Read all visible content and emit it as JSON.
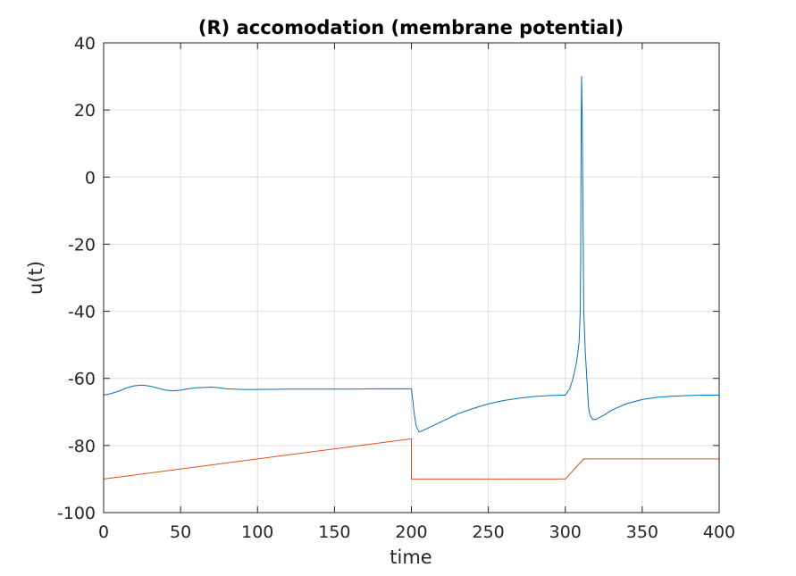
{
  "chart_data": {
    "type": "line",
    "title": "(R) accomodation (membrane potential)",
    "xlabel": "time",
    "ylabel": "u(t)",
    "xlim": [
      0,
      400
    ],
    "ylim": [
      -100,
      40
    ],
    "xticks": [
      0,
      50,
      100,
      150,
      200,
      250,
      300,
      350,
      400
    ],
    "yticks": [
      -100,
      -80,
      -60,
      -40,
      -20,
      0,
      20,
      40
    ],
    "grid": true,
    "legend": "none",
    "series": [
      {
        "color": "#0072BD",
        "x": [
          0,
          5,
          10,
          15,
          20,
          25,
          30,
          35,
          40,
          45,
          50,
          55,
          60,
          65,
          70,
          75,
          80,
          90,
          100,
          120,
          140,
          160,
          180,
          199.5,
          200,
          201,
          202,
          203,
          205,
          210,
          220,
          230,
          240,
          250,
          260,
          270,
          280,
          290,
          299.5,
          300,
          303,
          305,
          307,
          308,
          309,
          309.7,
          310,
          310.3,
          310.6,
          311,
          311.5,
          312,
          313,
          314,
          315,
          316,
          318,
          320,
          325,
          330,
          340,
          350,
          360,
          370,
          380,
          390,
          400
        ],
        "y": [
          -65,
          -64.5,
          -63.8,
          -62.8,
          -62.2,
          -62,
          -62.3,
          -62.9,
          -63.5,
          -63.7,
          -63.5,
          -63.1,
          -62.8,
          -62.7,
          -62.6,
          -62.8,
          -63.1,
          -63.3,
          -63.3,
          -63.2,
          -63.2,
          -63.2,
          -63.1,
          -63.1,
          -63.1,
          -67,
          -71,
          -74,
          -76,
          -75,
          -72.8,
          -70.6,
          -69,
          -67.6,
          -66.6,
          -65.9,
          -65.4,
          -65.1,
          -65,
          -65,
          -63,
          -60,
          -56,
          -53,
          -49,
          -40,
          -25,
          13,
          30,
          18,
          -10,
          -40,
          -52,
          -60,
          -68,
          -71,
          -72.3,
          -72.2,
          -71,
          -69.5,
          -67.5,
          -66.3,
          -65.6,
          -65.3,
          -65.1,
          -65,
          -65
        ]
      },
      {
        "color": "#D95319",
        "x": [
          0,
          200,
          200,
          300,
          312,
          400
        ],
        "y": [
          -90,
          -78,
          -90,
          -90,
          -84,
          -84
        ]
      }
    ]
  }
}
